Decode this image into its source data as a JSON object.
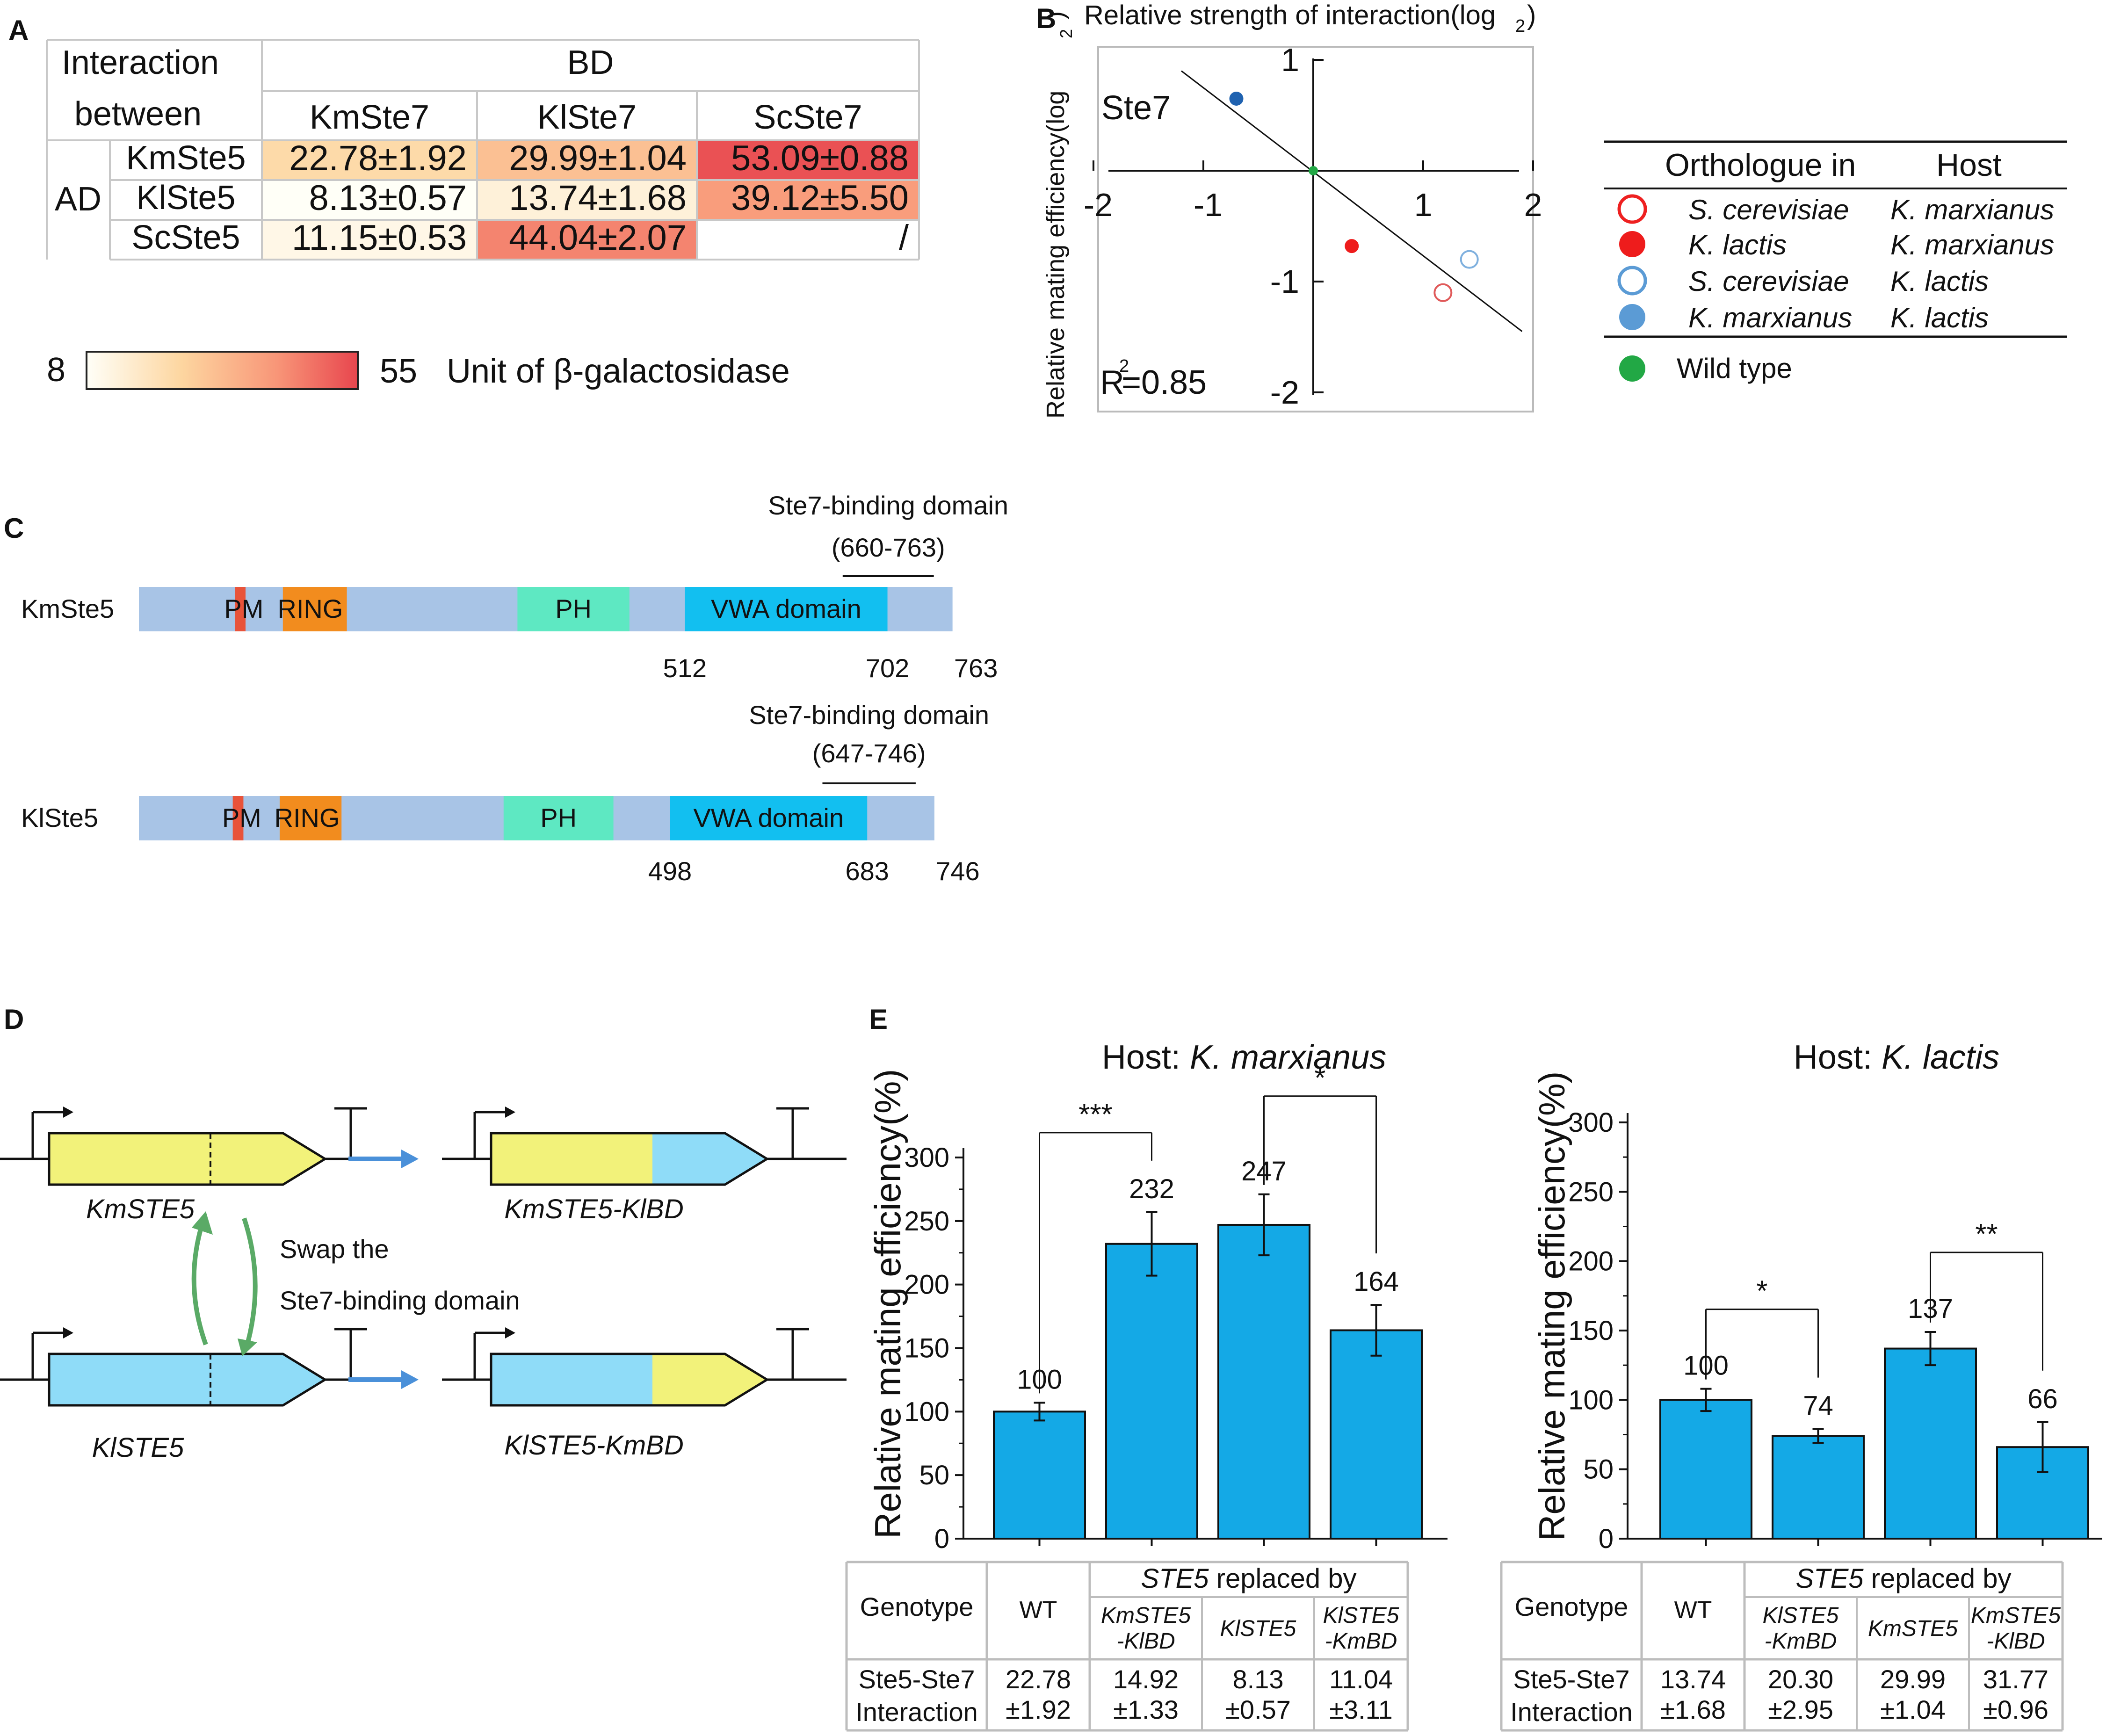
{
  "panelA": {
    "label": "A",
    "corner_line1": "Interaction",
    "corner_line2": "between",
    "bd_header": "BD",
    "ad_header": "AD",
    "col_headers": [
      "KmSte7",
      "KlSte7",
      "ScSte7"
    ],
    "rows": [
      {
        "name": "KmSte5",
        "cells": [
          "22.78±1.92",
          "29.99±1.04",
          "53.09±0.88"
        ],
        "values": [
          22.78,
          29.99,
          53.09
        ]
      },
      {
        "name": "KlSte5",
        "cells": [
          "8.13±0.57",
          "13.74±1.68",
          "39.12±5.50"
        ],
        "values": [
          8.13,
          13.74,
          39.12
        ]
      },
      {
        "name": "ScSte5",
        "cells": [
          "11.15±0.53",
          "44.04±2.07",
          "/"
        ],
        "values": [
          11.15,
          44.04,
          null
        ]
      }
    ],
    "scale_min": "8",
    "scale_max": "55",
    "scale_min_value": 8,
    "scale_max_value": 55,
    "scale_label": "Unit of β-galactosidase"
  },
  "panelB": {
    "label": "B",
    "title": "Relative strength of interaction(log",
    "title_sub": "2",
    "title_end": ")",
    "ylabel": "Relative mating efficiency(log",
    "ylabel_sub": "2",
    "ylabel_end": ")",
    "inner_label": "Ste7",
    "r2_label": "R",
    "r2_sup": "2",
    "r2_value": "=0.85",
    "x_ticks": [
      "-2",
      "-1",
      "1",
      "2"
    ],
    "y_ticks": [
      "1",
      "-1",
      "-2"
    ],
    "chart_data": {
      "type": "scatter",
      "xlim": [
        -2,
        2
      ],
      "ylim": [
        -2,
        1
      ],
      "points": [
        {
          "x": -0.7,
          "y": 0.65,
          "series": "K. marxianus in K. lactis"
        },
        {
          "x": 0.0,
          "y": 0.0,
          "series": "Wild type"
        },
        {
          "x": 0.35,
          "y": -0.68,
          "series": "K. lactis in K. marxianus"
        },
        {
          "x": 1.42,
          "y": -0.8,
          "series": "S. cerevisiae in K. lactis"
        },
        {
          "x": 1.18,
          "y": -1.1,
          "series": "S. cerevisiae in K. marxianus"
        }
      ],
      "fit_line": {
        "x1": -1.2,
        "y1": 0.9,
        "x2": 1.9,
        "y2": -1.45
      }
    },
    "legend_header_left": "Orthologue in",
    "legend_header_right": "Host",
    "legend": [
      {
        "species": "S. cerevisiae",
        "host": "K. marxianus",
        "style": "open-red"
      },
      {
        "species": "K. lactis",
        "host": "K. marxianus",
        "style": "filled-red"
      },
      {
        "species": "S. cerevisiae",
        "host": "K. lactis",
        "style": "open-blue"
      },
      {
        "species": "K. marxianus",
        "host": "K. lactis",
        "style": "filled-blue"
      }
    ],
    "wild_type": "Wild type"
  },
  "panelC": {
    "label": "C",
    "proteins": [
      {
        "name": "KmSte5",
        "length": 763,
        "binding_domain": "Ste7-binding domain",
        "binding_range": "(660-763)",
        "domains": [
          {
            "name": "PM",
            "start": 90,
            "end": 100,
            "label_start": 80
          },
          {
            "name": "RING",
            "start": 135,
            "end": 195,
            "label_start": 130
          },
          {
            "name": "PH",
            "start": 355,
            "end": 460
          },
          {
            "name": "VWA domain",
            "start": 512,
            "end": 702
          }
        ],
        "ticks": [
          "512",
          "702",
          "763"
        ]
      },
      {
        "name": "KlSte5",
        "length": 746,
        "binding_domain": "Ste7-binding domain",
        "binding_range": "(647-746)",
        "domains": [
          {
            "name": "PM",
            "start": 88,
            "end": 98,
            "label_start": 78
          },
          {
            "name": "RING",
            "start": 132,
            "end": 190,
            "label_start": 127
          },
          {
            "name": "PH",
            "start": 342,
            "end": 445
          },
          {
            "name": "VWA domain",
            "start": 498,
            "end": 683
          }
        ],
        "ticks": [
          "498",
          "683",
          "746"
        ]
      }
    ]
  },
  "panelD": {
    "label": "D",
    "genes": [
      "KmSTE5",
      "KmSTE5-KlBD",
      "KlSTE5",
      "KlSTE5-KmBD"
    ],
    "swap_line1": "Swap the",
    "swap_line2": "Ste7-binding domain",
    "colors": {
      "km": "#f2f27a",
      "kl": "#8fdcf8",
      "arrow": "#4a90d9",
      "swap": "#5aaa66"
    }
  },
  "panelE": {
    "label": "E",
    "charts": [
      {
        "title_prefix": "Host: ",
        "title_species": "K. marxianus",
        "ylabel": "Relative mating efficiency(%)",
        "y_ticks": [
          "0",
          "50",
          "100",
          "150",
          "200",
          "250",
          "300"
        ],
        "chart_data": {
          "type": "bar",
          "categories": [
            "WT",
            "KmSTE5-KlBD",
            "KlSTE5",
            "KlSTE5-KmBD"
          ],
          "values": [
            100,
            232,
            247,
            164
          ],
          "errors": [
            7,
            25,
            24,
            20
          ],
          "ylim": [
            0,
            300
          ],
          "value_labels": [
            "100",
            "232",
            "247",
            "164"
          ],
          "significance": [
            {
              "from": 0,
              "to": 1,
              "label": "***"
            },
            {
              "from": 2,
              "to": 3,
              "label": "*"
            }
          ]
        },
        "table": {
          "genotype": "Genotype",
          "wt": "WT",
          "replaced_italic": "STE5",
          "replaced_rest": " replaced by",
          "cols": [
            [
              "KmSTE5",
              "-KlBD"
            ],
            [
              "KlSTE5"
            ],
            [
              "KlSTE5",
              "-KmBD"
            ]
          ],
          "row_label": [
            "Ste5-Ste7",
            "Interaction"
          ],
          "values": [
            [
              "22.78",
              "±1.92"
            ],
            [
              "14.92",
              "±1.33"
            ],
            [
              "8.13",
              "±0.57"
            ],
            [
              "11.04",
              "±3.11"
            ]
          ]
        }
      },
      {
        "title_prefix": "Host: ",
        "title_species": "K. lactis",
        "ylabel": "Relative mating efficiency(%)",
        "y_ticks": [
          "0",
          "50",
          "100",
          "150",
          "200",
          "250",
          "300"
        ],
        "chart_data": {
          "type": "bar",
          "categories": [
            "WT",
            "KlSTE5-KmBD",
            "KmSTE5",
            "KmSTE5-KlBD"
          ],
          "values": [
            100,
            74,
            137,
            66
          ],
          "errors": [
            8,
            5,
            12,
            18
          ],
          "ylim": [
            0,
            300
          ],
          "value_labels": [
            "100",
            "74",
            "137",
            "66"
          ],
          "significance": [
            {
              "from": 0,
              "to": 1,
              "label": "*"
            },
            {
              "from": 2,
              "to": 3,
              "label": "**"
            }
          ]
        },
        "table": {
          "genotype": "Genotype",
          "wt": "WT",
          "replaced_italic": "STE5",
          "replaced_rest": " replaced by",
          "cols": [
            [
              "KlSTE5",
              "-KmBD"
            ],
            [
              "KmSTE5"
            ],
            [
              "KmSTE5",
              "-KlBD"
            ]
          ],
          "row_label": [
            "Ste5-Ste7",
            "Interaction"
          ],
          "values": [
            [
              "13.74",
              "±1.68"
            ],
            [
              "20.30",
              "±2.95"
            ],
            [
              "29.99",
              "±1.04"
            ],
            [
              "31.77",
              "±0.96"
            ]
          ]
        }
      }
    ]
  }
}
